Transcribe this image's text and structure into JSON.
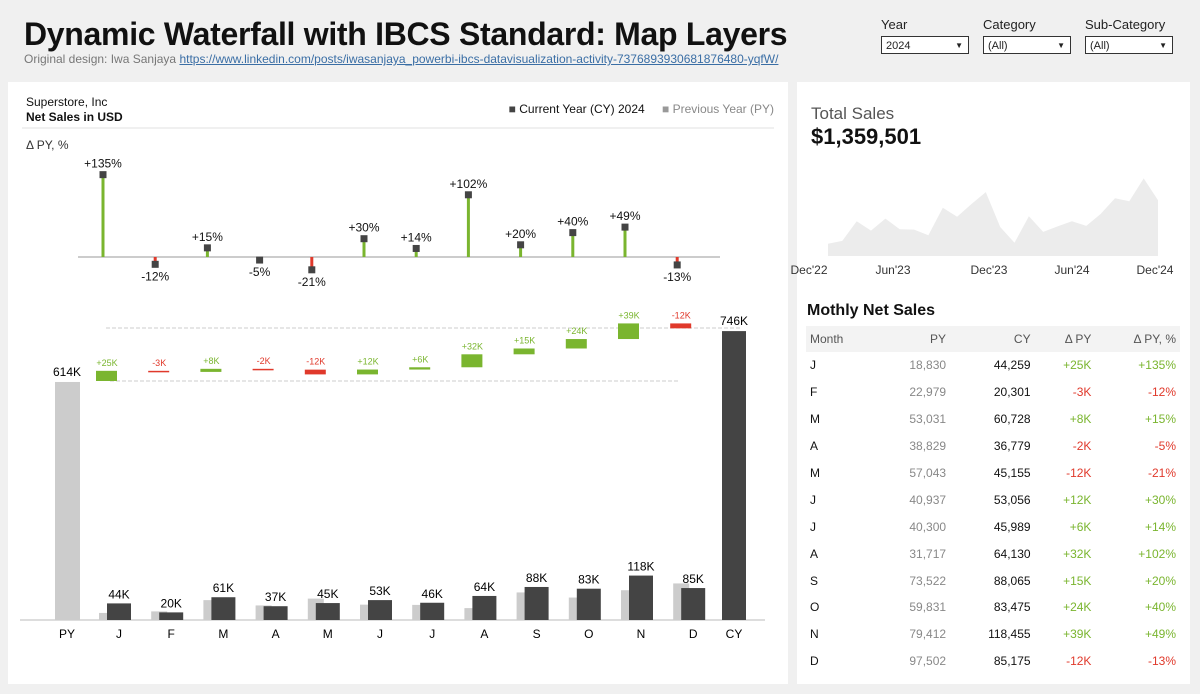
{
  "header": {
    "title": "Dynamic Waterfall with IBCS Standard: Map Layers",
    "credit": "Original design: Iwa Sanjaya",
    "link": "https://www.linkedin.com/posts/iwasanjaya_powerbi-ibcs-datavisualization-activity-7376893930681876480-yqfW/"
  },
  "filters": [
    {
      "label": "Year",
      "value": "2024"
    },
    {
      "label": "Category",
      "value": "(All)"
    },
    {
      "label": "Sub-Category",
      "value": "(All)"
    }
  ],
  "main": {
    "company": "Superstore, Inc",
    "measure": "Net Sales in USD",
    "legend_cy": "Current Year (CY) 2024",
    "legend_py": "Previous Year (PY)",
    "delta_label": "Δ PY, %"
  },
  "colors": {
    "positive": "#7ab52f",
    "negative": "#e0392b",
    "cy": "#444444",
    "py": "#cccccc"
  },
  "chart_data": {
    "type": "bar",
    "categories": [
      "J",
      "F",
      "M",
      "A",
      "M",
      "J",
      "J",
      "A",
      "S",
      "O",
      "N",
      "D"
    ],
    "total_labels": {
      "py": "PY",
      "cy": "CY"
    },
    "py_total": 614249,
    "cy_total": 745558,
    "py_total_label": "614K",
    "cy_total_label": "746K",
    "py": [
      18830,
      22979,
      53031,
      38829,
      57043,
      40937,
      40300,
      31717,
      73522,
      59831,
      79412,
      97502
    ],
    "cy": [
      44259,
      20301,
      60728,
      36779,
      45155,
      53056,
      45989,
      64130,
      88065,
      83475,
      118455,
      85175
    ],
    "cy_labels": [
      "44K",
      "20K",
      "61K",
      "37K",
      "45K",
      "53K",
      "46K",
      "64K",
      "88K",
      "83K",
      "118K",
      "85K"
    ],
    "delta_labels": [
      "+25K",
      "-3K",
      "+8K",
      "-2K",
      "-12K",
      "+12K",
      "+6K",
      "+32K",
      "+15K",
      "+24K",
      "+39K",
      "-12K"
    ],
    "delta_pct": [
      135,
      -12,
      15,
      -5,
      -21,
      30,
      14,
      102,
      20,
      40,
      49,
      -13
    ],
    "delta_pct_labels": [
      "+135%",
      "-12%",
      "+15%",
      "-5%",
      "-21%",
      "+30%",
      "+14%",
      "+102%",
      "+20%",
      "+40%",
      "+49%",
      "-13%"
    ]
  },
  "side": {
    "total_title": "Total Sales",
    "total_value": "$1,359,501",
    "trend_ticks": [
      "Dec'22",
      "Jun'23",
      "Dec'23",
      "Jun'24",
      "Dec'24"
    ],
    "table_title": "Mothly Net Sales",
    "columns": [
      "Month",
      "PY",
      "CY",
      "Δ PY",
      "Δ PY, %"
    ],
    "rows": [
      [
        "J",
        "18,830",
        "44,259",
        "+25K",
        "+135%"
      ],
      [
        "F",
        "22,979",
        "20,301",
        "-3K",
        "-12%"
      ],
      [
        "M",
        "53,031",
        "60,728",
        "+8K",
        "+15%"
      ],
      [
        "A",
        "38,829",
        "36,779",
        "-2K",
        "-5%"
      ],
      [
        "M",
        "57,043",
        "45,155",
        "-12K",
        "-21%"
      ],
      [
        "J",
        "40,937",
        "53,056",
        "+12K",
        "+30%"
      ],
      [
        "J",
        "40,300",
        "45,989",
        "+6K",
        "+14%"
      ],
      [
        "A",
        "31,717",
        "64,130",
        "+32K",
        "+102%"
      ],
      [
        "S",
        "73,522",
        "88,065",
        "+15K",
        "+20%"
      ],
      [
        "O",
        "59,831",
        "83,475",
        "+24K",
        "+40%"
      ],
      [
        "N",
        "79,412",
        "118,455",
        "+39K",
        "+49%"
      ],
      [
        "D",
        "97,502",
        "85,175",
        "-12K",
        "-13%"
      ]
    ]
  }
}
